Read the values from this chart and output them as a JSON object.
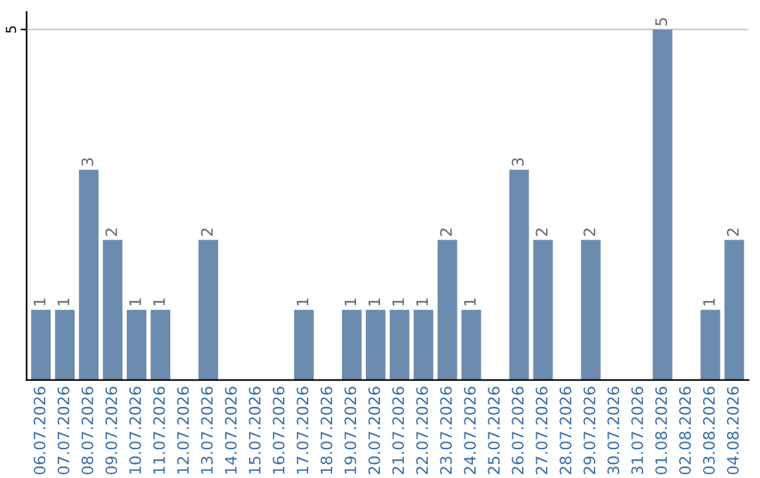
{
  "chart_data": {
    "type": "bar",
    "categories": [
      "06.07.2026",
      "07.07.2026",
      "08.07.2026",
      "09.07.2026",
      "10.07.2026",
      "11.07.2026",
      "12.07.2026",
      "13.07.2026",
      "14.07.2026",
      "15.07.2026",
      "16.07.2026",
      "17.07.2026",
      "18.07.2026",
      "19.07.2026",
      "20.07.2026",
      "21.07.2026",
      "22.07.2026",
      "23.07.2026",
      "24.07.2026",
      "25.07.2026",
      "26.07.2026",
      "27.07.2026",
      "28.07.2026",
      "29.07.2026",
      "30.07.2026",
      "31.07.2026",
      "01.08.2026",
      "02.08.2026",
      "03.08.2026",
      "04.08.2026"
    ],
    "values": [
      1,
      1,
      3,
      2,
      1,
      1,
      0,
      2,
      0,
      0,
      0,
      1,
      0,
      1,
      1,
      1,
      1,
      2,
      1,
      0,
      3,
      2,
      0,
      2,
      0,
      0,
      5,
      0,
      1,
      2
    ],
    "value_labels": [
      "1",
      "1",
      "3",
      "2",
      "1",
      "1",
      null,
      "2",
      null,
      null,
      null,
      "1",
      null,
      "1",
      "1",
      "1",
      "1",
      "2",
      "1",
      null,
      "3",
      "2",
      null,
      "2",
      null,
      null,
      "5",
      null,
      "1",
      "2"
    ],
    "color": "#6b8cae",
    "ylim": [
      0,
      5.25
    ],
    "yticks": [
      5
    ],
    "grid": "y"
  }
}
